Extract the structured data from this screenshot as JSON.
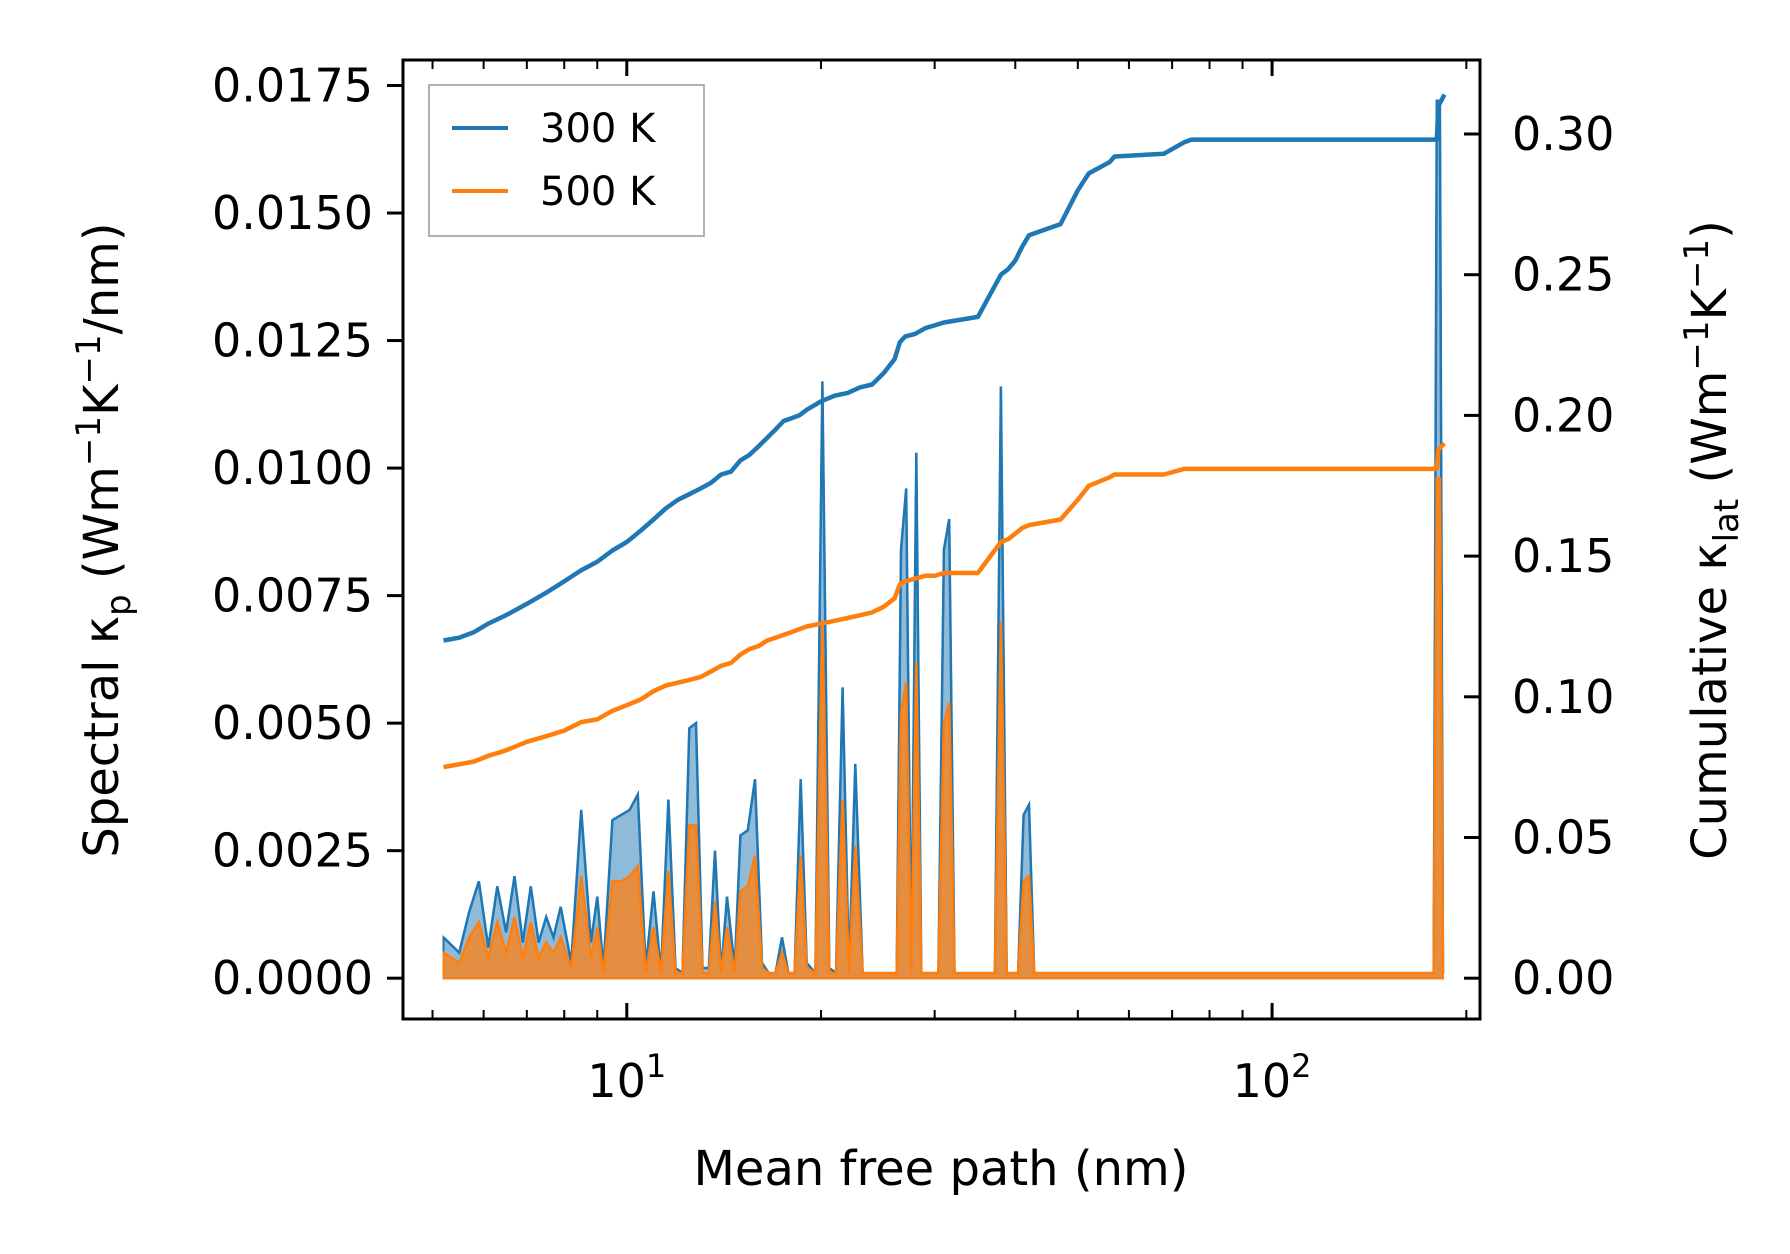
{
  "chart_data": {
    "type": "line",
    "xscale": "log",
    "xlim": [
      4.5,
      210
    ],
    "xlabel": "Mean free path (nm)",
    "x_ticks": [
      {
        "base": "10",
        "exp": "1"
      },
      {
        "base": "10",
        "exp": "2"
      }
    ],
    "left_axis": {
      "label": {
        "pre": "Spectral κ",
        "sub": "p",
        "mid": " (Wm",
        "sup1": "−1",
        "k": "K",
        "sup2": "−1",
        "post": "/nm)"
      },
      "ylim": [
        -0.0008,
        0.018
      ],
      "ticks": [
        0.0,
        0.0025,
        0.005,
        0.0075,
        0.01,
        0.0125,
        0.015,
        0.0175
      ],
      "tick_labels": [
        "0.0000",
        "0.0025",
        "0.0050",
        "0.0075",
        "0.0100",
        "0.0125",
        "0.0150",
        "0.0175"
      ]
    },
    "right_axis": {
      "label": {
        "pre": "Cumulative κ",
        "sub": "lat",
        "mid": " (Wm",
        "sup1": "−1",
        "k": "K",
        "sup2": "−1",
        "post": ")"
      },
      "ylim": [
        -0.0145,
        0.3263
      ],
      "ticks": [
        0.0,
        0.05,
        0.1,
        0.15,
        0.2,
        0.25,
        0.3
      ],
      "tick_labels": [
        "0.00",
        "0.05",
        "0.10",
        "0.15",
        "0.20",
        "0.25",
        "0.30"
      ]
    },
    "legend": {
      "position": "top-left",
      "entries": [
        "300 K",
        "500 K"
      ]
    },
    "series": [
      {
        "name": "300 K",
        "color": "#1f77b4",
        "cumulative": {
          "x": [
            5.2,
            5.5,
            5.8,
            6.1,
            6.5,
            7.0,
            7.5,
            8.0,
            8.5,
            9.0,
            9.5,
            10.0,
            10.5,
            11.0,
            11.5,
            12.0,
            12.5,
            13.0,
            13.5,
            14.0,
            14.5,
            15.0,
            15.5,
            16.0,
            16.5,
            17.0,
            17.5,
            18.0,
            18.5,
            19.0,
            20.0,
            21.0,
            22.0,
            23.0,
            24.0,
            25.0,
            26.0,
            26.5,
            27.0,
            28.0,
            29.0,
            30.0,
            31.0,
            35.0,
            38.0,
            39.0,
            40.0,
            41.0,
            42.0,
            47.0,
            50.0,
            52.0,
            56.0,
            57.0,
            68.0,
            73.0,
            75.0,
            180.0,
            181.0,
            185.0
          ],
          "y": [
            0.12,
            0.121,
            0.123,
            0.126,
            0.129,
            0.133,
            0.137,
            0.141,
            0.145,
            0.148,
            0.152,
            0.155,
            0.159,
            0.163,
            0.167,
            0.17,
            0.172,
            0.174,
            0.176,
            0.179,
            0.18,
            0.184,
            0.186,
            0.189,
            0.192,
            0.195,
            0.198,
            0.199,
            0.2,
            0.202,
            0.205,
            0.207,
            0.208,
            0.21,
            0.211,
            0.215,
            0.22,
            0.226,
            0.228,
            0.229,
            0.231,
            0.232,
            0.233,
            0.235,
            0.25,
            0.252,
            0.255,
            0.26,
            0.264,
            0.268,
            0.28,
            0.286,
            0.29,
            0.292,
            0.293,
            0.297,
            0.298,
            0.298,
            0.31,
            0.314
          ]
        },
        "spectral": {
          "x": [
            5.2,
            5.5,
            5.7,
            5.9,
            6.1,
            6.3,
            6.5,
            6.7,
            6.9,
            7.1,
            7.3,
            7.5,
            7.7,
            7.9,
            8.2,
            8.5,
            8.8,
            9.0,
            9.2,
            9.5,
            9.8,
            10.1,
            10.4,
            10.7,
            11.0,
            11.3,
            11.6,
            11.9,
            12.2,
            12.5,
            12.8,
            13.1,
            13.4,
            13.7,
            14.0,
            14.3,
            14.7,
            15.0,
            15.4,
            15.8,
            16.2,
            16.6,
            17.0,
            17.4,
            17.8,
            18.2,
            18.6,
            19.0,
            19.6,
            20.1,
            20.6,
            21.1,
            21.6,
            22.1,
            22.6,
            23.2,
            23.8,
            24.4,
            25.0,
            25.6,
            26.2,
            26.6,
            27.1,
            27.6,
            28.1,
            28.6,
            29.2,
            29.8,
            30.4,
            31.0,
            31.6,
            32.2,
            37.2,
            38.0,
            38.8,
            39.6,
            40.4,
            41.2,
            42.0,
            42.8,
            46.0,
            47.0,
            48.0,
            49.0,
            50.0,
            52.0,
            54.0,
            55.2,
            56.4,
            57.6,
            66.0,
            67.5,
            69.0,
            70.5,
            72.0,
            176.0,
            178.0,
            180.0,
            182.0,
            184.0
          ],
          "y": [
            0.0008,
            0.0005,
            0.0013,
            0.0019,
            0.0006,
            0.0018,
            0.0009,
            0.002,
            0.0007,
            0.0018,
            0.0007,
            0.0012,
            0.0008,
            0.0014,
            0.0003,
            0.0033,
            0.0007,
            0.0016,
            0.0002,
            0.0031,
            0.0032,
            0.0033,
            0.0036,
            0.0002,
            0.0017,
            0.0001,
            0.0035,
            0.0002,
            0.0001,
            0.0049,
            0.005,
            0.0002,
            0.0002,
            0.0025,
            0.0001,
            0.0016,
            0.0002,
            0.0028,
            0.0029,
            0.0039,
            0.0003,
            0.0001,
            0.0001,
            0.0008,
            0.0001,
            0.0001,
            0.0039,
            0.0003,
            0.0001,
            0.0117,
            0.0002,
            0.0001,
            0.0057,
            0.0001,
            0.0042,
            0.0001,
            0.0001,
            0.0001,
            0.0001,
            0.0001,
            0.0001,
            0.0084,
            0.0096,
            0.0001,
            0.0103,
            0.0001,
            0.0001,
            0.0001,
            0.0001,
            0.0084,
            0.009,
            0.0001,
            0.0001,
            0.0116,
            0.0001,
            0.0001,
            0.0001,
            0.0032,
            0.0034,
            0.0001,
            0.0001,
            0.0001,
            0.0001,
            0.0001,
            0.0001,
            0.0001,
            0.0001,
            0.0001,
            0.0001,
            0.0001,
            0.0001,
            0.0001,
            0.0001,
            0.0001,
            0.0001,
            0.0001,
            0.0001,
            0.0172,
            0.0172,
            0.0001
          ]
        }
      },
      {
        "name": "500 K",
        "color": "#ff7f0e",
        "cumulative": {
          "x": [
            5.2,
            5.5,
            5.8,
            6.1,
            6.5,
            7.0,
            7.5,
            8.0,
            8.5,
            9.0,
            9.5,
            10.0,
            10.5,
            11.0,
            11.5,
            12.0,
            12.5,
            13.0,
            13.5,
            14.0,
            14.5,
            15.0,
            15.5,
            16.0,
            16.5,
            17.0,
            17.5,
            18.0,
            18.5,
            19.0,
            20.0,
            21.0,
            22.0,
            23.0,
            24.0,
            25.0,
            26.0,
            26.5,
            27.0,
            28.0,
            29.0,
            30.0,
            31.0,
            35.0,
            38.0,
            39.0,
            40.0,
            41.0,
            42.0,
            47.0,
            50.0,
            52.0,
            56.0,
            57.0,
            68.0,
            73.0,
            75.0,
            180.0,
            181.0,
            185.0
          ],
          "y": [
            0.075,
            0.076,
            0.077,
            0.079,
            0.081,
            0.084,
            0.086,
            0.088,
            0.091,
            0.092,
            0.095,
            0.097,
            0.099,
            0.102,
            0.104,
            0.105,
            0.106,
            0.107,
            0.109,
            0.111,
            0.112,
            0.115,
            0.117,
            0.118,
            0.12,
            0.121,
            0.122,
            0.123,
            0.124,
            0.125,
            0.126,
            0.127,
            0.128,
            0.129,
            0.13,
            0.132,
            0.135,
            0.14,
            0.141,
            0.142,
            0.143,
            0.143,
            0.144,
            0.144,
            0.155,
            0.156,
            0.158,
            0.16,
            0.161,
            0.163,
            0.17,
            0.175,
            0.178,
            0.179,
            0.179,
            0.181,
            0.181,
            0.181,
            0.188,
            0.19
          ]
        },
        "spectral": {
          "x": [
            5.2,
            5.5,
            5.7,
            5.9,
            6.1,
            6.3,
            6.5,
            6.7,
            6.9,
            7.1,
            7.3,
            7.5,
            7.7,
            7.9,
            8.2,
            8.5,
            8.8,
            9.0,
            9.2,
            9.5,
            9.8,
            10.1,
            10.4,
            10.7,
            11.0,
            11.3,
            11.6,
            11.9,
            12.2,
            12.5,
            12.8,
            13.1,
            13.4,
            13.7,
            14.0,
            14.3,
            14.7,
            15.0,
            15.4,
            15.8,
            16.2,
            16.6,
            17.0,
            17.4,
            17.8,
            18.2,
            18.6,
            19.0,
            19.6,
            20.1,
            20.6,
            21.1,
            21.6,
            22.1,
            22.6,
            23.2,
            23.8,
            24.4,
            25.0,
            25.6,
            26.2,
            26.6,
            27.1,
            27.6,
            28.1,
            28.6,
            29.2,
            29.8,
            30.4,
            31.0,
            31.6,
            32.2,
            37.2,
            38.0,
            38.8,
            39.6,
            40.4,
            41.2,
            42.0,
            42.8,
            46.0,
            47.0,
            48.0,
            49.0,
            50.0,
            52.0,
            54.0,
            55.2,
            56.4,
            57.6,
            66.0,
            67.5,
            69.0,
            70.5,
            72.0,
            176.0,
            178.0,
            180.0,
            182.0,
            184.0
          ],
          "y": [
            0.0005,
            0.0003,
            0.0008,
            0.0011,
            0.0004,
            0.0011,
            0.0005,
            0.0012,
            0.0004,
            0.0011,
            0.0004,
            0.0007,
            0.0005,
            0.0008,
            0.0002,
            0.002,
            0.0004,
            0.001,
            0.0001,
            0.0019,
            0.0019,
            0.002,
            0.0022,
            0.0001,
            0.001,
            0.0001,
            0.0021,
            0.0001,
            0.0001,
            0.003,
            0.003,
            0.0001,
            0.0001,
            0.0015,
            0.0001,
            0.001,
            0.0001,
            0.0017,
            0.0018,
            0.0024,
            0.0002,
            0.0001,
            0.0001,
            0.0005,
            0.0001,
            0.0001,
            0.0024,
            0.0002,
            0.0001,
            0.007,
            0.0001,
            0.0001,
            0.0035,
            0.0001,
            0.0026,
            0.0001,
            0.0001,
            0.0001,
            0.0001,
            0.0001,
            0.0001,
            0.0052,
            0.0058,
            0.0001,
            0.0062,
            0.0001,
            0.0001,
            0.0001,
            0.0001,
            0.005,
            0.0054,
            0.0001,
            0.0001,
            0.007,
            0.0001,
            0.0001,
            0.0001,
            0.0019,
            0.002,
            0.0001,
            0.0001,
            0.0001,
            0.0001,
            0.0001,
            0.0001,
            0.0001,
            0.0001,
            0.0001,
            0.0001,
            0.0001,
            0.0001,
            0.0001,
            0.0001,
            0.0001,
            0.0001,
            0.0001,
            0.0001,
            0.0098,
            0.0098,
            0.0001
          ]
        }
      }
    ]
  }
}
